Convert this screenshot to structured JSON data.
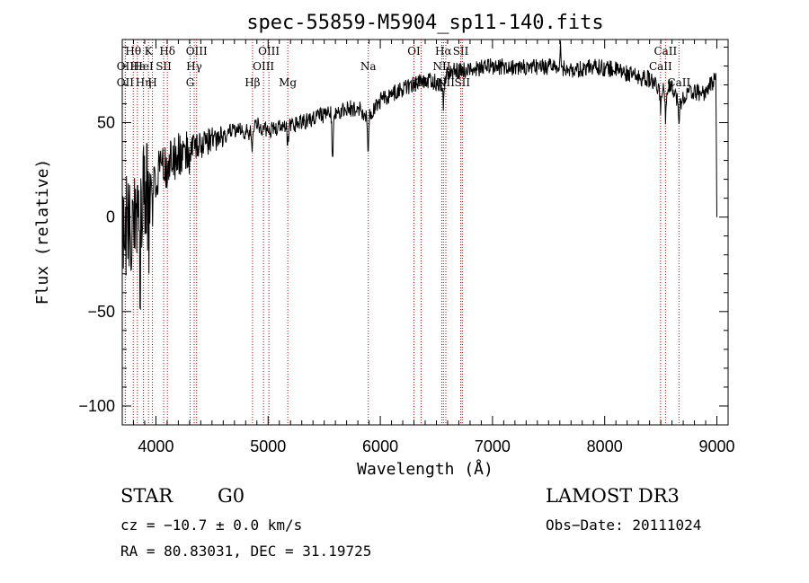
{
  "chart_data": {
    "type": "line",
    "title": "spec-55859-M5904_sp11-140.fits",
    "xlabel": "Wavelength (Å)",
    "ylabel": "Flux (relative)",
    "xlim": [
      3700,
      9100
    ],
    "ylim": [
      -110,
      94
    ],
    "x_ticks": [
      4000,
      5000,
      6000,
      7000,
      8000,
      9000
    ],
    "y_ticks": [
      -100,
      -50,
      0,
      50
    ],
    "series": [
      {
        "name": "spectrum",
        "anchors_x": [
          3700,
          3750,
          3800,
          3850,
          3900,
          3950,
          4000,
          4100,
          4200,
          4300,
          4400,
          4500,
          4700,
          4860,
          4900,
          5000,
          5200,
          5400,
          5600,
          5800,
          5890,
          6000,
          6200,
          6400,
          6560,
          6600,
          6800,
          7000,
          7200,
          7400,
          7600,
          7700,
          7900,
          8100,
          8300,
          8400,
          8500,
          8600,
          8660,
          8750,
          8900,
          8990,
          9000
        ],
        "anchors_y": [
          -15,
          -5,
          5,
          10,
          18,
          22,
          22,
          28,
          33,
          36,
          38,
          41,
          46,
          45,
          49,
          46,
          48,
          52,
          56,
          58,
          53,
          62,
          68,
          73,
          70,
          77,
          78,
          80,
          79,
          79,
          80,
          77,
          80,
          78,
          74,
          73,
          66,
          70,
          60,
          66,
          66,
          74,
          0
        ],
        "dips_x": [
          3860,
          3934,
          3969,
          4101,
          4305,
          4861,
          5175,
          5575,
          5892,
          6563,
          8498,
          8542,
          8662
        ],
        "dips_depth": [
          40,
          35,
          25,
          10,
          9,
          8,
          10,
          27,
          22,
          12,
          8,
          14,
          12
        ],
        "peak_x": 7605,
        "peak_y": 92
      }
    ],
    "lines": [
      {
        "label": "Hθ",
        "wave": 3798,
        "row": 0
      },
      {
        "label": "OII",
        "wave": 3727,
        "row": 1
      },
      {
        "label": "OII",
        "wave": 3727,
        "row": 2
      },
      {
        "label": "Hε",
        "wave": 3835,
        "row": 1
      },
      {
        "label": "Hη",
        "wave": 3889,
        "row": 2
      },
      {
        "label": "K",
        "wave": 3934,
        "row": 0
      },
      {
        "label": "HeI",
        "wave": 3889,
        "row": 1
      },
      {
        "label": "H",
        "wave": 3969,
        "row": 2
      },
      {
        "label": "SII",
        "wave": 4069,
        "row": 1
      },
      {
        "label": "Hδ",
        "wave": 4102,
        "row": 0
      },
      {
        "label": "OIII",
        "wave": 4363,
        "row": 0
      },
      {
        "label": "Hγ",
        "wave": 4341,
        "row": 1
      },
      {
        "label": "G",
        "wave": 4305,
        "row": 2
      },
      {
        "label": "Hβ",
        "wave": 4861,
        "row": 2
      },
      {
        "label": "OIII",
        "wave": 5007,
        "row": 0
      },
      {
        "label": "OIII",
        "wave": 4959,
        "row": 1
      },
      {
        "label": "Mg",
        "wave": 5175,
        "row": 2
      },
      {
        "label": "Na",
        "wave": 5893,
        "row": 1
      },
      {
        "label": "OI",
        "wave": 6300,
        "row": 0
      },
      {
        "label": "OI",
        "wave": 6364,
        "row": 2
      },
      {
        "label": "Hα",
        "wave": 6563,
        "row": 0
      },
      {
        "label": "NII",
        "wave": 6548,
        "row": 1
      },
      {
        "label": "NII",
        "wave": 6584,
        "row": 2
      },
      {
        "label": "SII",
        "wave": 6717,
        "row": 0
      },
      {
        "label": "SII",
        "wave": 6731,
        "row": 2
      },
      {
        "label": "CaII",
        "wave": 8542,
        "row": 0
      },
      {
        "label": "CaII",
        "wave": 8498,
        "row": 1
      },
      {
        "label": "CaII",
        "wave": 8662,
        "row": 2
      }
    ]
  },
  "info": {
    "class_label": "STAR",
    "subclass_label": "G0",
    "survey": "LAMOST DR3",
    "cz_text": "cz = −10.7 ± 0.0 km/s",
    "obs_date_text": "Obs−Date: 20111024",
    "radec_text": "RA =  80.83031, DEC =  31.19725"
  }
}
